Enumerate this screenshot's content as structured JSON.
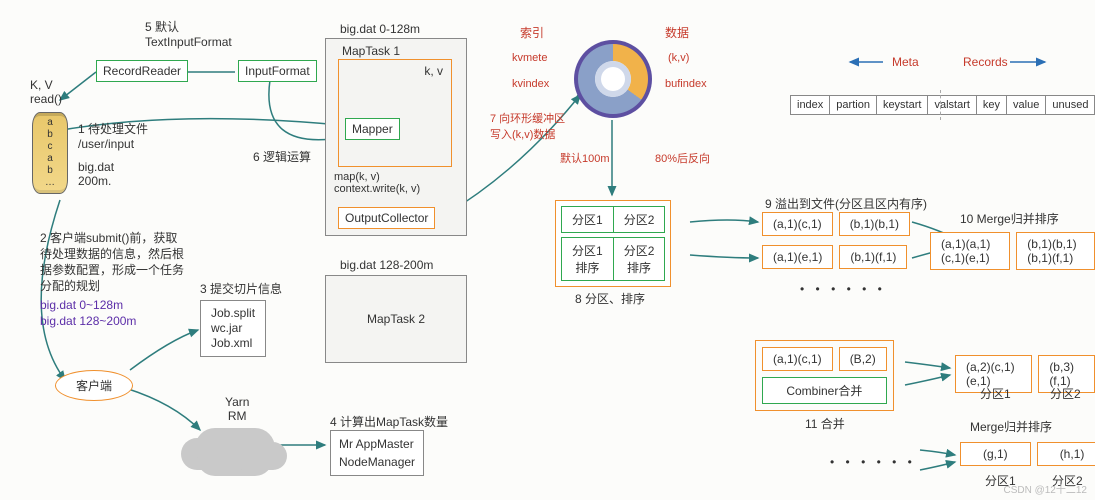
{
  "colors": {
    "green": "#2fa84f",
    "orange": "#f0902d",
    "red": "#c63a2b",
    "purple": "#5c2ea8",
    "blue": "#2b6fb5",
    "teal": "#2e7d7d",
    "gray": "#888888",
    "text": "#333333"
  },
  "topLeft": {
    "record_reader": "RecordReader",
    "input_format": "InputFormat",
    "step5": "5 默认\nTextInputFormat",
    "kv_read": "K, V\nread()",
    "cyl_lines": [
      "a",
      "b",
      "c",
      "a",
      "b",
      "…"
    ]
  },
  "fileInfo": {
    "step1": "1 待处理文件\n/user/input",
    "filename": "big.dat\n200m.",
    "step2": "2 客户端submit()前，获取\n待处理数据的信息，然后根\n据参数配置，形成一个任务\n分配的规划",
    "split_a": "big.dat 0~128m",
    "split_b": "big.dat 128~200m",
    "client": "客户端"
  },
  "job": {
    "step3": "3 提交切片信息",
    "items": "Job.split\nwc.jar\nJob.xml",
    "yarn": "Yarn\nRM",
    "step4": "4 计算出MapTask数量",
    "app_master": "Mr AppMaster",
    "node_mgr": "NodeManager"
  },
  "maptask1": {
    "title": "big.dat 0-128m",
    "name": "MapTask 1",
    "kv": "k, v",
    "mapper": "Mapper",
    "step6": "6 逻辑运算",
    "map_write": "map(k, v)\ncontext.write(k, v)",
    "output_collector": "OutputCollector"
  },
  "maptask2": {
    "title": "big.dat 128-200m",
    "name": "MapTask 2"
  },
  "ring": {
    "index_lbl": "索引",
    "data_lbl": "数据",
    "kvmete": "kvmete",
    "kv_pair": "(k,v)",
    "kvindex": "kvindex",
    "bufindex": "bufindex",
    "step7": "7 向环形缓冲区\n写入(k,v)数据",
    "default_100m": "默认100m",
    "eighty_reverse": "80%后反向"
  },
  "meta_table": {
    "meta_lbl": "Meta",
    "records_lbl": "Records",
    "cells": [
      "index",
      "partion",
      "keystart",
      "valstart",
      "key",
      "value",
      "unused"
    ]
  },
  "partition": {
    "p1": "分区1",
    "p2": "分区2",
    "p1s": "分区1\n排序",
    "p2s": "分区2\n排序",
    "step8": "8 分区、排序"
  },
  "spill": {
    "step9": "9 溢出到文件(分区且区内有序)",
    "r1c1": "(a,1)(c,1)",
    "r1c2": "(b,1)(b,1)",
    "r2c1": "(a,1)(e,1)",
    "r2c2": "(b,1)(f,1)",
    "dots": "•  •  •  •  •  •"
  },
  "merge": {
    "step10": "10 Merge归并排序",
    "c1": "(a,1)(a,1)(c,1)(e,1)",
    "c2": "(b,1)(b,1)(b,1)(f,1)"
  },
  "combiner": {
    "r1c1": "(a,1)(c,1)",
    "r1c2": "(B,2)",
    "label": "Combiner合并",
    "step11": "11 合并",
    "out_c1": "(a,2)(c,1)(e,1)",
    "out_c2": "(b,3)(f,1)",
    "p1": "分区1",
    "p2": "分区2",
    "merge_lbl": "Merge归并排序",
    "dots": "•  •  •  •  •  •",
    "g1": "(g,1)",
    "h1": "(h,1)"
  },
  "watermark": "CSDN @12十二12"
}
